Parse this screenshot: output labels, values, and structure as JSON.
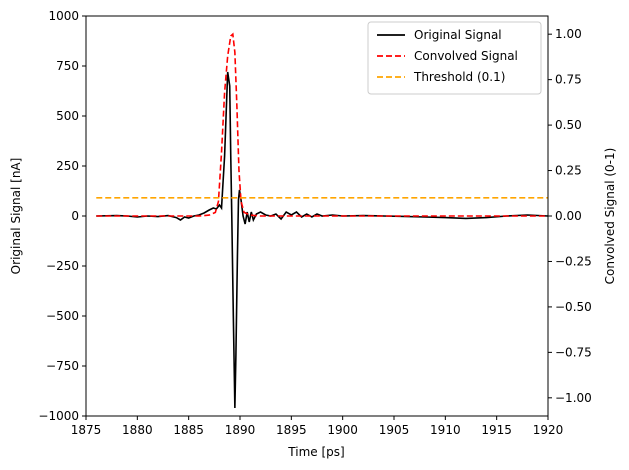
{
  "chart_data": {
    "type": "line",
    "xlabel": "Time [ps]",
    "ylabel_left": "Original Signal [nA]",
    "ylabel_right": "Convolved Signal (0-1)",
    "xlim": [
      1875,
      1920
    ],
    "ylim_left": [
      -1000,
      1000
    ],
    "ylim_right": [
      -1.1,
      1.1
    ],
    "x_ticks": [
      1875,
      1880,
      1885,
      1890,
      1895,
      1900,
      1905,
      1910,
      1915,
      1920
    ],
    "y_left_ticks": [
      -1000,
      -750,
      -500,
      -250,
      0,
      250,
      500,
      750,
      1000
    ],
    "y_left_tick_labels": [
      "−1000",
      "−750",
      "−500",
      "−250",
      "0",
      "250",
      "500",
      "750",
      "1000"
    ],
    "y_right_ticks": [
      -1.0,
      -0.75,
      -0.5,
      -0.25,
      0.0,
      0.25,
      0.5,
      0.75,
      1.0
    ],
    "y_right_tick_labels": [
      "−1.00",
      "−0.75",
      "−0.50",
      "−0.25",
      "0.00",
      "0.25",
      "0.50",
      "0.75",
      "1.00"
    ],
    "grid": false,
    "legend_position": "top-right",
    "series": [
      {
        "name": "Original Signal",
        "axis": "left",
        "color": "#000000",
        "dash": "solid",
        "points": [
          [
            1876,
            0
          ],
          [
            1878,
            2
          ],
          [
            1879,
            0
          ],
          [
            1880,
            -5
          ],
          [
            1881,
            0
          ],
          [
            1882,
            -3
          ],
          [
            1883,
            2
          ],
          [
            1883.8,
            -8
          ],
          [
            1884.2,
            -20
          ],
          [
            1884.6,
            -5
          ],
          [
            1885,
            -10
          ],
          [
            1885.5,
            0
          ],
          [
            1886,
            5
          ],
          [
            1886.5,
            15
          ],
          [
            1887,
            30
          ],
          [
            1887.4,
            40
          ],
          [
            1887.7,
            35
          ],
          [
            1888,
            55
          ],
          [
            1888.2,
            40
          ],
          [
            1888.5,
            300
          ],
          [
            1888.8,
            720
          ],
          [
            1889.0,
            650
          ],
          [
            1889.1,
            300
          ],
          [
            1889.2,
            0
          ],
          [
            1889.35,
            -500
          ],
          [
            1889.5,
            -960
          ],
          [
            1889.6,
            -700
          ],
          [
            1889.75,
            -200
          ],
          [
            1889.85,
            80
          ],
          [
            1889.95,
            130
          ],
          [
            1890.1,
            80
          ],
          [
            1890.3,
            0
          ],
          [
            1890.5,
            -40
          ],
          [
            1890.7,
            20
          ],
          [
            1890.9,
            -30
          ],
          [
            1891.1,
            20
          ],
          [
            1891.3,
            -20
          ],
          [
            1891.6,
            10
          ],
          [
            1892,
            20
          ],
          [
            1892.5,
            5
          ],
          [
            1893,
            0
          ],
          [
            1893.5,
            10
          ],
          [
            1894,
            -15
          ],
          [
            1894.5,
            20
          ],
          [
            1895,
            5
          ],
          [
            1895.5,
            20
          ],
          [
            1896,
            -5
          ],
          [
            1896.5,
            10
          ],
          [
            1897,
            -5
          ],
          [
            1897.5,
            10
          ],
          [
            1898,
            0
          ],
          [
            1899,
            5
          ],
          [
            1900,
            0
          ],
          [
            1902,
            2
          ],
          [
            1904,
            0
          ],
          [
            1906,
            -2
          ],
          [
            1908,
            -5
          ],
          [
            1910,
            -8
          ],
          [
            1912,
            -12
          ],
          [
            1914,
            -8
          ],
          [
            1916,
            0
          ],
          [
            1918,
            5
          ],
          [
            1920,
            0
          ]
        ]
      },
      {
        "name": "Convolved Signal",
        "axis": "right",
        "color": "#ff0000",
        "dash": "dashed",
        "points": [
          [
            1876,
            0
          ],
          [
            1880,
            0
          ],
          [
            1886,
            0
          ],
          [
            1887,
            0.005
          ],
          [
            1887.6,
            0.02
          ],
          [
            1887.9,
            0.08
          ],
          [
            1888.2,
            0.35
          ],
          [
            1888.5,
            0.68
          ],
          [
            1888.8,
            0.88
          ],
          [
            1889.1,
            0.99
          ],
          [
            1889.3,
            1.0
          ],
          [
            1889.5,
            0.9
          ],
          [
            1889.7,
            0.6
          ],
          [
            1889.9,
            0.25
          ],
          [
            1890.1,
            0.08
          ],
          [
            1890.4,
            0.02
          ],
          [
            1891,
            0.005
          ],
          [
            1892,
            0
          ],
          [
            1905,
            0
          ],
          [
            1920,
            0
          ]
        ]
      },
      {
        "name": "Threshold (0.1)",
        "axis": "right",
        "color": "#ffa500",
        "dash": "dashed",
        "points": [
          [
            1876,
            0.1
          ],
          [
            1920,
            0.1
          ]
        ]
      }
    ]
  }
}
